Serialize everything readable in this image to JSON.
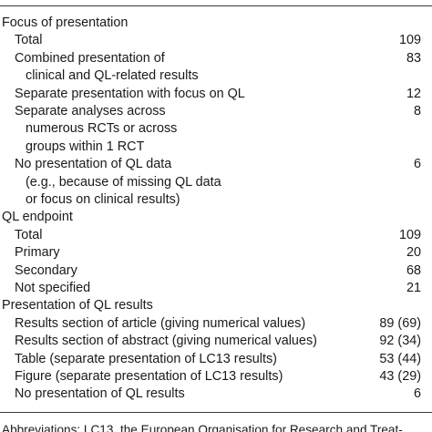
{
  "sections": [
    {
      "title": "Focus of presentation",
      "rows": [
        {
          "label": [
            "Total"
          ],
          "value": "109"
        },
        {
          "label": [
            "Combined presentation of",
            "clinical and QL-related results"
          ],
          "value": "83"
        },
        {
          "label": [
            "Separate presentation with focus on QL"
          ],
          "value": "12"
        },
        {
          "label": [
            "Separate analyses across",
            "numerous RCTs or across",
            "groups within 1 RCT"
          ],
          "value": "8"
        },
        {
          "label": [
            "No presentation of QL data",
            "(e.g., because of missing QL data",
            "or focus on clinical results)"
          ],
          "value": "6"
        }
      ]
    },
    {
      "title": "QL endpoint",
      "rows": [
        {
          "label": [
            "Total"
          ],
          "value": "109"
        },
        {
          "label": [
            "Primary"
          ],
          "value": "20"
        },
        {
          "label": [
            "Secondary"
          ],
          "value": "68"
        },
        {
          "label": [
            "Not specified"
          ],
          "value": "21"
        }
      ]
    },
    {
      "title": "Presentation of QL results",
      "rows": [
        {
          "label": [
            "Results section of article (giving numerical values)"
          ],
          "value": "89 (69)"
        },
        {
          "label": [
            "Results section of abstract (giving numerical values)"
          ],
          "value": "92 (34)"
        },
        {
          "label": [
            "Table (separate presentation of LC13 results)"
          ],
          "value": "53 (44)"
        },
        {
          "label": [
            "Figure (separate presentation of LC13 results)"
          ],
          "value": "43 (29)"
        },
        {
          "label": [
            "No presentation of QL results"
          ],
          "value": "6"
        }
      ]
    }
  ],
  "footnote": "Abbreviations: LC13, the European Organisation for Research and Treat-"
}
